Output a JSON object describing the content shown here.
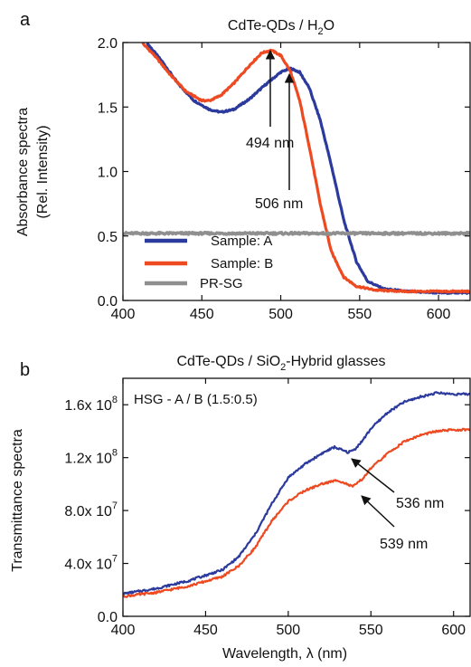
{
  "chart_data": [
    {
      "type": "line",
      "panel_label": "a",
      "title": "CdTe-QDs / H₂O",
      "title_main": "CdTe-QDs / H",
      "title_sub": "2",
      "title_end": "O",
      "ylabel_line1": "Absorbance spectra",
      "ylabel_line2": "(Rel. Intensity)",
      "xlim": [
        400,
        620
      ],
      "ylim": [
        0,
        2.0
      ],
      "x_ticks": [
        400,
        450,
        500,
        550,
        600
      ],
      "x_tick_labels": [
        "400",
        "450",
        "500",
        "550",
        "600"
      ],
      "y_ticks": [
        0.0,
        0.5,
        1.0,
        1.5,
        2.0
      ],
      "y_tick_labels": [
        "0.0",
        "0.5",
        "1.0",
        "1.5",
        "2.0"
      ],
      "legend_position": "bottom-left",
      "grid": false,
      "series": [
        {
          "name": "Sample: A",
          "color": "#2b3a9c",
          "x": [
            415,
            425,
            435,
            445,
            455,
            462,
            470,
            480,
            490,
            500,
            506,
            512,
            518,
            525,
            532,
            540,
            548,
            555,
            565,
            580,
            600,
            620
          ],
          "y": [
            2.0,
            1.85,
            1.68,
            1.55,
            1.48,
            1.46,
            1.48,
            1.56,
            1.67,
            1.77,
            1.8,
            1.77,
            1.65,
            1.4,
            1.05,
            0.62,
            0.3,
            0.15,
            0.09,
            0.07,
            0.06,
            0.06
          ]
        },
        {
          "name": "Sample: B",
          "color": "#ee4a22",
          "x": [
            412,
            420,
            430,
            440,
            450,
            455,
            462,
            470,
            480,
            488,
            494,
            500,
            506,
            512,
            518,
            525,
            532,
            540,
            548,
            560,
            580,
            600,
            620
          ],
          "y": [
            2.0,
            1.9,
            1.75,
            1.62,
            1.55,
            1.55,
            1.59,
            1.68,
            1.82,
            1.92,
            1.94,
            1.9,
            1.78,
            1.55,
            1.2,
            0.75,
            0.38,
            0.18,
            0.11,
            0.08,
            0.07,
            0.07,
            0.07
          ]
        },
        {
          "name": "PR-SG",
          "color": "#8f8f8f",
          "x": [
            400,
            620
          ],
          "y": [
            0.52,
            0.52
          ]
        }
      ],
      "annotations": [
        {
          "text": "494 nm",
          "x": 494,
          "y": 1.94
        },
        {
          "text": "506 nm",
          "x": 506,
          "y": 1.8
        }
      ]
    },
    {
      "type": "line",
      "panel_label": "b",
      "title": "CdTe-QDs / SiO₂-Hybrid glasses",
      "title_main": "CdTe-QDs / SiO",
      "title_sub": "2",
      "title_end": "-Hybrid glasses",
      "inset_text": "HSG - A / B (1.5:0.5)",
      "ylabel": "Transmittance spectra",
      "xlabel": "Wavelength, λ (nm)",
      "xlim": [
        400,
        610
      ],
      "ylim": [
        0,
        180000000
      ],
      "x_ticks": [
        400,
        450,
        500,
        550,
        600
      ],
      "x_tick_labels": [
        "400",
        "450",
        "500",
        "550",
        "600"
      ],
      "y_ticks": [
        0,
        40000000,
        80000000,
        120000000,
        160000000
      ],
      "y_tick_labels": [
        {
          "base": "0.0",
          "exp": ""
        },
        {
          "base": "4.0x 10",
          "exp": "7"
        },
        {
          "base": "8.0x 10",
          "exp": "7"
        },
        {
          "base": "1.2x 10",
          "exp": "8"
        },
        {
          "base": "1.6x 10",
          "exp": "8"
        }
      ],
      "grid": false,
      "series": [
        {
          "name": "HSG - A",
          "color": "#2b3a9c",
          "x": [
            400,
            420,
            440,
            460,
            470,
            480,
            490,
            500,
            510,
            520,
            528,
            536,
            540,
            545,
            550,
            560,
            570,
            580,
            590,
            600,
            610
          ],
          "y": [
            17000000,
            21000000,
            27000000,
            35000000,
            45000000,
            62000000,
            85000000,
            105000000,
            115000000,
            123000000,
            128000000,
            124000000,
            126000000,
            133000000,
            142000000,
            154000000,
            162000000,
            166000000,
            169000000,
            168000000,
            168000000
          ]
        },
        {
          "name": "HSG - B",
          "color": "#ee4a22",
          "x": [
            400,
            420,
            440,
            460,
            470,
            480,
            490,
            500,
            510,
            520,
            530,
            539,
            545,
            550,
            560,
            570,
            580,
            590,
            600,
            610
          ],
          "y": [
            15000000,
            18000000,
            23000000,
            30000000,
            38000000,
            52000000,
            72000000,
            87000000,
            95000000,
            100000000,
            103000000,
            98000000,
            104000000,
            112000000,
            123000000,
            132000000,
            137000000,
            140000000,
            141000000,
            141000000
          ]
        }
      ],
      "annotations": [
        {
          "text": "536 nm",
          "x": 536,
          "y": 124000000
        },
        {
          "text": "539 nm",
          "x": 539,
          "y": 98000000
        }
      ]
    }
  ]
}
